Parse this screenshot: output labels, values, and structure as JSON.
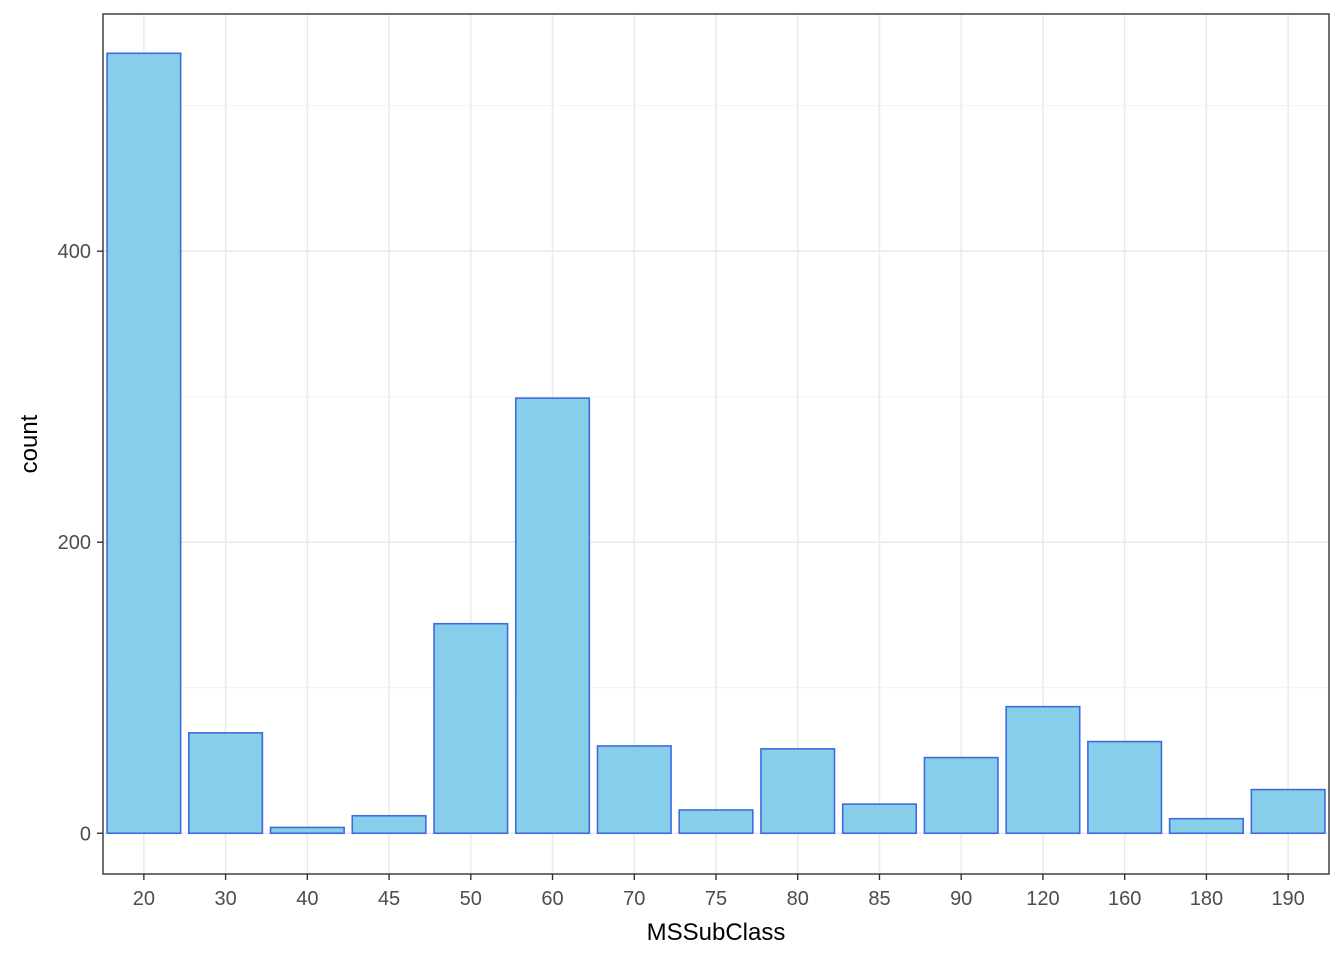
{
  "chart_data": {
    "type": "bar",
    "title": "",
    "xlabel": "MSSubClass",
    "ylabel": "count",
    "categories": [
      "20",
      "30",
      "40",
      "45",
      "50",
      "60",
      "70",
      "75",
      "80",
      "85",
      "90",
      "120",
      "160",
      "180",
      "190"
    ],
    "values": [
      536,
      69,
      4,
      12,
      144,
      299,
      60,
      16,
      58,
      20,
      52,
      87,
      63,
      10,
      30
    ],
    "ylim": [
      -28,
      563
    ],
    "yticks": [
      0,
      200,
      400
    ],
    "grid": true,
    "legend": "none",
    "colors": {
      "bar_fill": "#87CEEB",
      "bar_stroke": "#4169E1",
      "grid_major": "#ebebeb",
      "grid_minor": "#f2f2f2",
      "panel_border": "#333333",
      "tick_label": "#4d4d4d"
    }
  }
}
